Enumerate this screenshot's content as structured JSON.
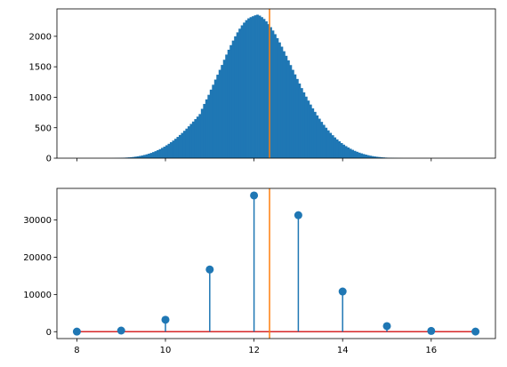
{
  "chart_data": [
    {
      "type": "bar",
      "title": "",
      "xlabel": "",
      "ylabel": "",
      "xlim": [
        7.55,
        17.45
      ],
      "ylim": [
        0,
        2450
      ],
      "xticks": [
        8,
        10,
        12,
        14,
        16
      ],
      "xtick_labels_visible": false,
      "yticks": [
        0,
        500,
        1000,
        1500,
        2000
      ],
      "ytick_labels": [
        "0",
        "500",
        "1000",
        "1500",
        "2000"
      ],
      "grid": false,
      "legend": "none",
      "bar_color": "#1f77b4",
      "bin_width": 0.05,
      "bin_start": 8.0,
      "values": [
        0,
        0,
        0,
        0,
        0,
        0,
        0,
        0,
        0,
        0,
        0,
        0,
        0,
        0,
        0,
        0,
        1,
        2,
        3,
        4,
        6,
        8,
        10,
        13,
        16,
        20,
        25,
        31,
        37,
        45,
        53,
        63,
        74,
        86,
        100,
        115,
        131,
        149,
        169,
        189,
        212,
        236,
        262,
        289,
        318,
        349,
        381,
        414,
        449,
        485,
        523,
        562,
        601,
        641,
        682,
        724,
        810,
        890,
        965,
        1040,
        1125,
        1205,
        1290,
        1370,
        1450,
        1530,
        1615,
        1700,
        1780,
        1855,
        1930,
        2000,
        2065,
        2125,
        2180,
        2225,
        2265,
        2295,
        2315,
        2330,
        2345,
        2355,
        2340,
        2315,
        2285,
        2245,
        2200,
        2150,
        2095,
        2035,
        1970,
        1900,
        1830,
        1755,
        1680,
        1605,
        1528,
        1450,
        1375,
        1300,
        1225,
        1150,
        1080,
        1010,
        945,
        880,
        818,
        760,
        702,
        648,
        596,
        547,
        500,
        456,
        415,
        377,
        341,
        308,
        277,
        248,
        222,
        198,
        176,
        155,
        137,
        120,
        105,
        91,
        79,
        68,
        58,
        49,
        41,
        34,
        28,
        23,
        19,
        15,
        12,
        9,
        7,
        5,
        4,
        3,
        2,
        1,
        1,
        0,
        0,
        0,
        0,
        0,
        0,
        0,
        0,
        0,
        0,
        0,
        0,
        0,
        0,
        0,
        0,
        0,
        0,
        0,
        0,
        0,
        0,
        0
      ],
      "mean_line": {
        "x": 12.35,
        "color": "#ff7f0e"
      }
    },
    {
      "type": "stem",
      "title": "",
      "xlabel": "",
      "ylabel": "",
      "xlim": [
        7.55,
        17.45
      ],
      "ylim": [
        -1850,
        38500
      ],
      "xticks": [
        8,
        10,
        12,
        14,
        16
      ],
      "xtick_labels": [
        "8",
        "10",
        "12",
        "14",
        "16"
      ],
      "yticks": [
        0,
        10000,
        20000,
        30000
      ],
      "ytick_labels": [
        "0",
        "10000",
        "20000",
        "30000"
      ],
      "grid": false,
      "legend": "none",
      "x": [
        8,
        9,
        10,
        11,
        12,
        13,
        14,
        15,
        16,
        17
      ],
      "y": [
        20,
        300,
        3200,
        16700,
        36600,
        31300,
        10800,
        1500,
        200,
        30
      ],
      "stem_color": "#1f77b4",
      "baseline_color": "#d62728",
      "mean_line": {
        "x": 12.35,
        "color": "#ff7f0e"
      }
    }
  ]
}
